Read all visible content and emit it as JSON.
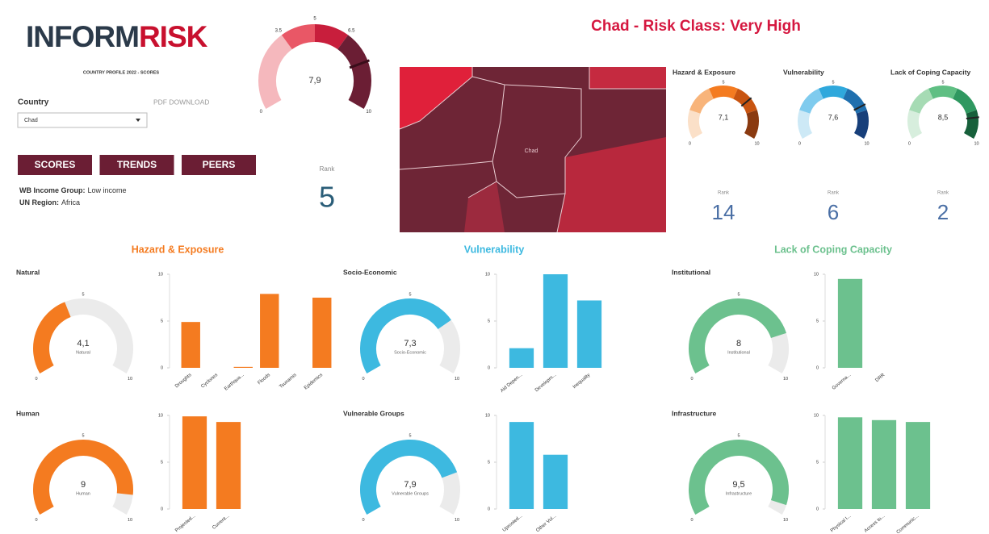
{
  "header": {
    "logo_a": "INFORM",
    "logo_b": "RISK",
    "subtitle": "COUNTRY PROFILE 2022 - SCORES",
    "title": "Chad - Risk Class: Very High"
  },
  "controls": {
    "country_label": "Country",
    "country": "Chad",
    "pdf": "PDF DOWNLOAD",
    "buttons": [
      "SCORES",
      "TRENDS",
      "PEERS"
    ]
  },
  "info": [
    {
      "label": "WB Income Group:",
      "value": "Low income"
    },
    {
      "label": "UN Region:",
      "value": "Africa"
    }
  ],
  "overall": {
    "value": 7.9,
    "value_label": "7,9",
    "lim": [
      0,
      10
    ],
    "ticks": [
      0,
      3.5,
      5,
      6.5,
      10
    ],
    "colors": [
      "#f5b8bd",
      "#e95766",
      "#c81e3c",
      "#6b1e34"
    ],
    "rank_label": "Rank",
    "rank": 5
  },
  "map": {
    "label": "Chad"
  },
  "gauge_scale": {
    "lim": [
      0,
      10
    ],
    "ticks": [
      0,
      5,
      10
    ]
  },
  "dimensions": [
    {
      "name": "Hazard & Exposure",
      "value": 7.1,
      "value_label": "7,1",
      "rank_label": "Rank",
      "rank": 14,
      "colors": [
        "#fbe0c8",
        "#f8b47a",
        "#f47b20",
        "#c85410",
        "#8a3a10"
      ]
    },
    {
      "name": "Vulnerability",
      "value": 7.6,
      "value_label": "7,6",
      "rank_label": "Rank",
      "rank": 6,
      "colors": [
        "#cde9f6",
        "#7fcbee",
        "#2fa8dc",
        "#1f6fae",
        "#173f7a"
      ]
    },
    {
      "name": "Lack of Coping Capacity",
      "value": 8.5,
      "value_label": "8,5",
      "rank_label": "Rank",
      "rank": 2,
      "colors": [
        "#d7eedd",
        "#a6dbb4",
        "#5fbf83",
        "#2f9860",
        "#17603b"
      ]
    }
  ],
  "sections": [
    {
      "title": "Hazard & Exposure",
      "color": "#f47b20",
      "panels": [
        {
          "title": "Natural",
          "gauge": {
            "value": 4.1,
            "value_label": "4,1",
            "name": "Natural"
          },
          "chart": {
            "type": "bar",
            "categories": [
              "Droughts",
              "Cyclones",
              "Earthqua...",
              "Floods",
              "Tsunamis",
              "Epidemics"
            ],
            "values": [
              4.9,
              0,
              0.1,
              7.9,
              0,
              7.5
            ],
            "ylim": [
              0,
              10
            ],
            "yticks": [
              0,
              5,
              10
            ]
          }
        },
        {
          "title": "Human",
          "gauge": {
            "value": 9,
            "name": "Human"
          },
          "chart": {
            "type": "bar",
            "categories": [
              "Projected...",
              "Current..."
            ],
            "values": [
              9.9,
              9.3
            ],
            "ylim": [
              0,
              10
            ],
            "yticks": [
              0,
              5,
              10
            ]
          }
        }
      ]
    },
    {
      "title": "Vulnerability",
      "color": "#3db9e0",
      "panels": [
        {
          "title": "Socio-Economic",
          "gauge": {
            "value": 7.3,
            "value_label": "7,3",
            "name": "Socio-Economic"
          },
          "chart": {
            "type": "bar",
            "categories": [
              "Aid Depen...",
              "Developm...",
              "Inequality"
            ],
            "values": [
              2.1,
              10,
              7.2
            ],
            "ylim": [
              0,
              10
            ],
            "yticks": [
              0,
              5,
              10
            ]
          }
        },
        {
          "title": "Vulnerable Groups",
          "gauge": {
            "value": 7.9,
            "value_label": "7,9",
            "name": "Vulnerable Groups"
          },
          "chart": {
            "type": "bar",
            "categories": [
              "Uprooted...",
              "Other Vul..."
            ],
            "values": [
              9.3,
              5.8
            ],
            "ylim": [
              0,
              10
            ],
            "yticks": [
              0,
              5,
              10
            ]
          }
        }
      ]
    },
    {
      "title": "Lack of Coping Capacity",
      "color": "#6cc18e",
      "panels": [
        {
          "title": "Institutional",
          "gauge": {
            "value": 8,
            "name": "Institutional"
          },
          "chart": {
            "type": "bar",
            "categories": [
              "Governa...",
              "DRR"
            ],
            "values": [
              9.5,
              0
            ],
            "ylim": [
              0,
              10
            ],
            "yticks": [
              0,
              5,
              10
            ]
          }
        },
        {
          "title": "Infrastructure",
          "gauge": {
            "value": 9.5,
            "value_label": "9,5",
            "name": "Infrastructure"
          },
          "chart": {
            "type": "bar",
            "categories": [
              "Physical I...",
              "Access to...",
              "Communic..."
            ],
            "values": [
              9.8,
              9.5,
              9.3
            ],
            "ylim": [
              0,
              10
            ],
            "yticks": [
              0,
              5,
              10
            ]
          }
        }
      ]
    }
  ]
}
